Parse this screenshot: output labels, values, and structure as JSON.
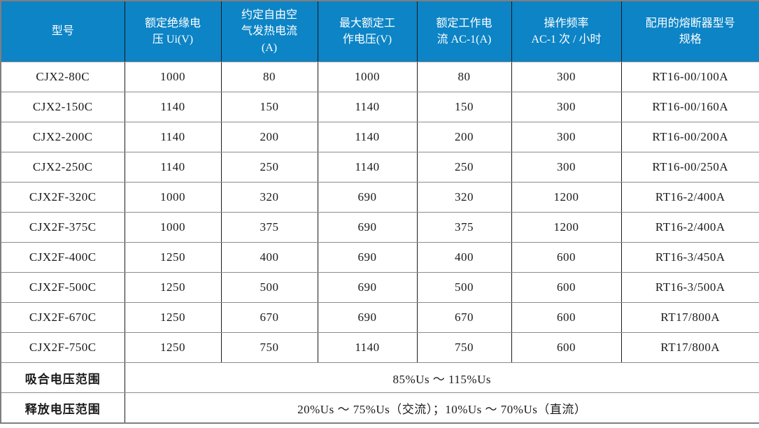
{
  "table": {
    "columns": [
      {
        "label": "型号"
      },
      {
        "label": "额定绝缘电\n压 Ui(V)"
      },
      {
        "label": "约定自由空\n气发热电流\n(A)"
      },
      {
        "label": "最大额定工\n作电压(V)"
      },
      {
        "label": "额定工作电\n流 AC-1(A)"
      },
      {
        "label": "操作频率\nAC-1 次 / 小时"
      },
      {
        "label": "配用的熔断器型号\n规格"
      }
    ],
    "rows": [
      [
        "CJX2-80C",
        "1000",
        "80",
        "1000",
        "80",
        "300",
        "RT16-00/100A"
      ],
      [
        "CJX2-150C",
        "1140",
        "150",
        "1140",
        "150",
        "300",
        "RT16-00/160A"
      ],
      [
        "CJX2-200C",
        "1140",
        "200",
        "1140",
        "200",
        "300",
        "RT16-00/200A"
      ],
      [
        "CJX2-250C",
        "1140",
        "250",
        "1140",
        "250",
        "300",
        "RT16-00/250A"
      ],
      [
        "CJX2F-320C",
        "1000",
        "320",
        "690",
        "320",
        "1200",
        "RT16-2/400A"
      ],
      [
        "CJX2F-375C",
        "1000",
        "375",
        "690",
        "375",
        "1200",
        "RT16-2/400A"
      ],
      [
        "CJX2F-400C",
        "1250",
        "400",
        "690",
        "400",
        "600",
        "RT16-3/450A"
      ],
      [
        "CJX2F-500C",
        "1250",
        "500",
        "690",
        "500",
        "600",
        "RT16-3/500A"
      ],
      [
        "CJX2F-670C",
        "1250",
        "670",
        "690",
        "670",
        "600",
        "RT17/800A"
      ],
      [
        "CJX2F-750C",
        "1250",
        "750",
        "1140",
        "750",
        "600",
        "RT17/800A"
      ]
    ],
    "footer_rows": [
      {
        "label": "吸合电压范围",
        "value": "85%Us ～ 115%Us"
      },
      {
        "label": "释放电压范围",
        "value": "20%Us ～ 75%Us（交流）；10%Us ～ 70%Us（直流）"
      }
    ],
    "colors": {
      "header_bg": "#0c84c6",
      "header_text": "#ffffff",
      "body_text": "#1a1a1a",
      "grid_vertical": "#1a1a1a",
      "grid_horizontal": "#8c8c8c",
      "outer_border": "#7f7f7f"
    }
  }
}
